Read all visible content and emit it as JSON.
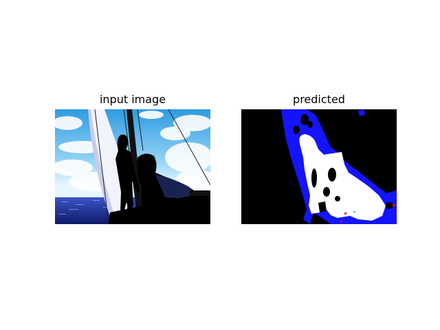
{
  "figure": {
    "panels": [
      {
        "title": "input image"
      },
      {
        "title": "predicted"
      }
    ]
  },
  "colors": {
    "sky_top": "#3aa6e6",
    "sky_light": "#e8f6ff",
    "sea": "#1a2b8a",
    "silhouette": "#000000",
    "sail": "#f2f4fb",
    "mask_background": "#000000",
    "mask_foreground": "#ffffff",
    "mask_secondary": "#1414ff",
    "mask_accent_red": "#e01010"
  }
}
